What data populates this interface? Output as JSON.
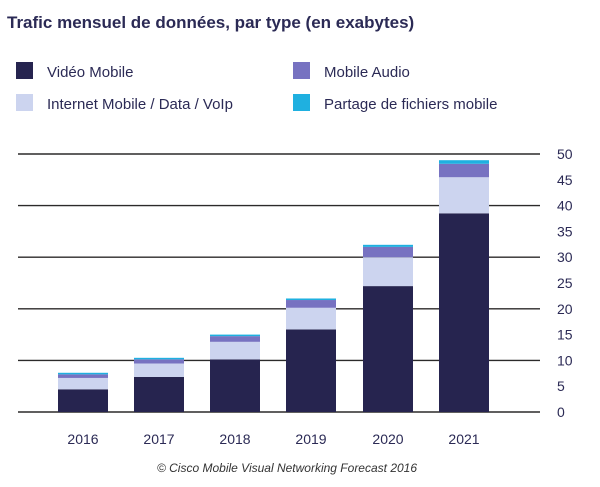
{
  "chart_data": {
    "type": "bar",
    "stacked": true,
    "title": "Trafic mensuel de données, par type (en exabytes)",
    "xlabel": "",
    "ylabel": "",
    "ylim": [
      0,
      50
    ],
    "yticks": [
      0,
      5,
      10,
      15,
      20,
      25,
      30,
      35,
      40,
      45,
      50
    ],
    "categories": [
      "2016",
      "2017",
      "2018",
      "2019",
      "2020",
      "2021"
    ],
    "series": [
      {
        "name": "Vidéo Mobile",
        "color": "#26244f",
        "values": [
          4.4,
          6.8,
          10.2,
          16.0,
          24.4,
          38.5
        ]
      },
      {
        "name": "Internet Mobile / Data / VoIp",
        "color": "#ccd4ef",
        "values": [
          2.2,
          2.6,
          3.4,
          4.2,
          5.6,
          7.0
        ]
      },
      {
        "name": "Mobile Audio",
        "color": "#7772c1",
        "values": [
          0.7,
          0.8,
          1.1,
          1.5,
          2.0,
          2.6
        ]
      },
      {
        "name": "Partage de fichiers mobile",
        "color": "#1fb0e0",
        "values": [
          0.3,
          0.3,
          0.3,
          0.3,
          0.4,
          0.7
        ]
      }
    ],
    "legend_position": "top",
    "grid": true,
    "y_axis_side": "right",
    "source": "© Cisco Mobile Visual Networking Forecast 2016"
  }
}
